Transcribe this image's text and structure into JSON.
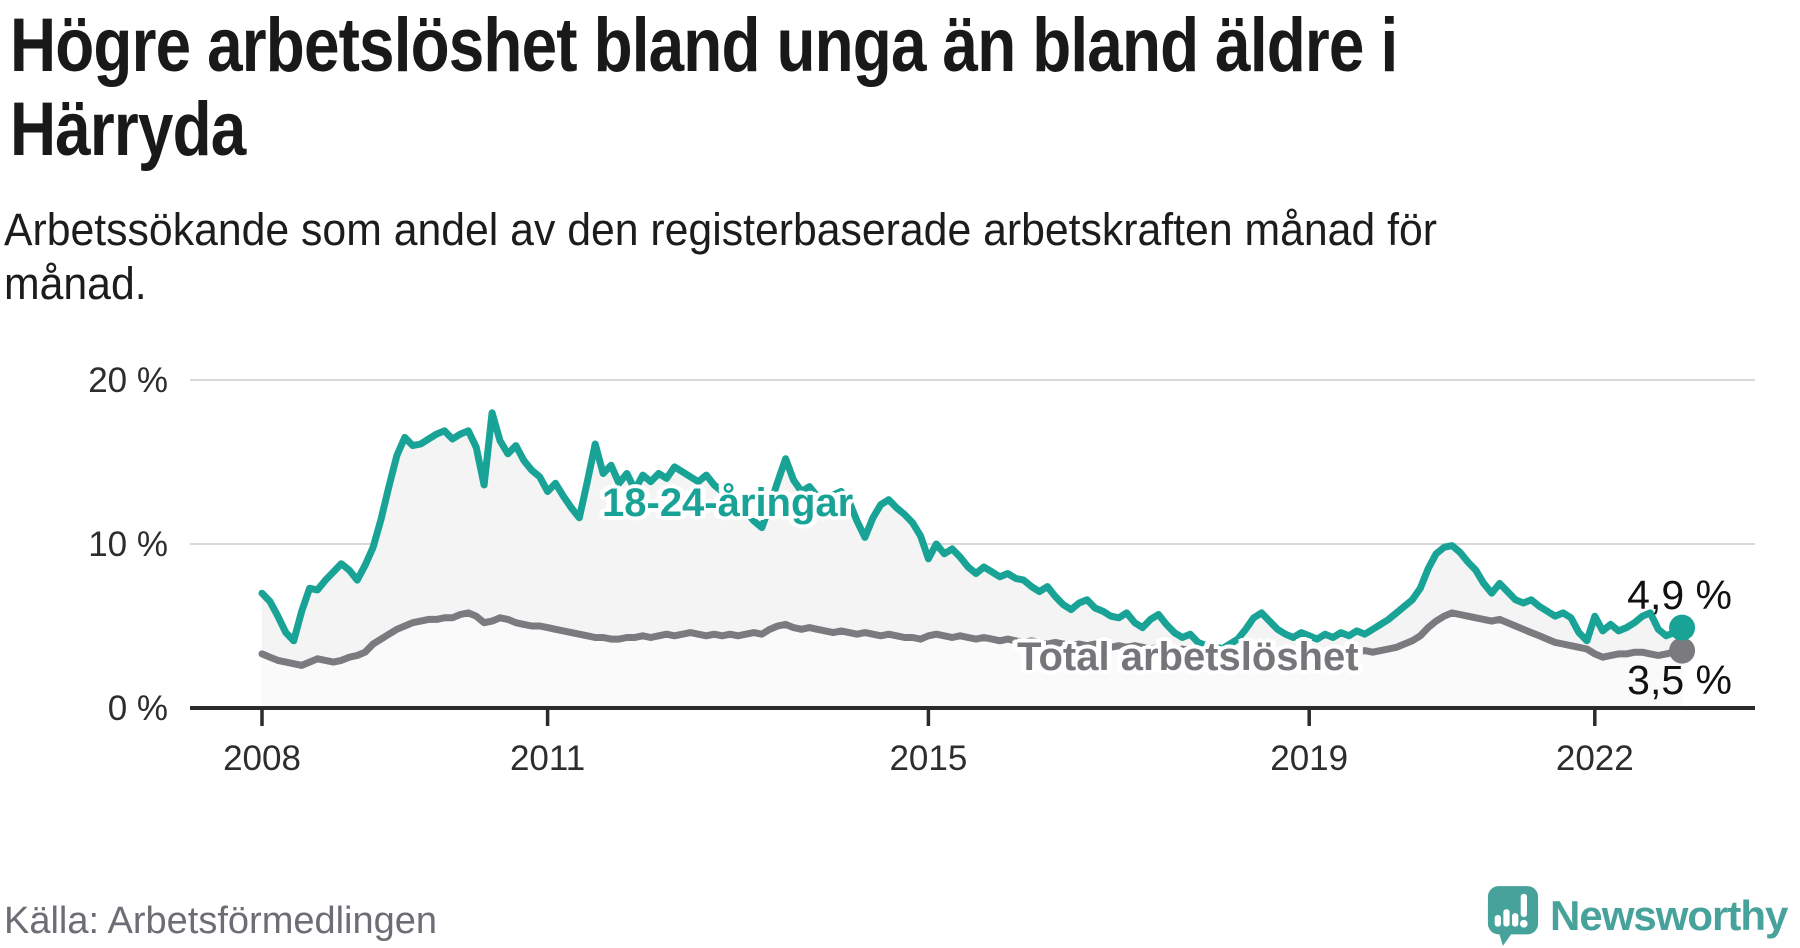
{
  "title": {
    "lines": [
      "Högre arbetslöshet bland unga än bland äldre i",
      "Härryda"
    ]
  },
  "subtitle": {
    "lines": [
      "Arbetssökande som andel av den registerbaserade arbetskraften månad för",
      "månad."
    ]
  },
  "annotations": {
    "youth_label": "18-24-åringar",
    "total_label": "Total arbetslöshet",
    "youth_end_label": "4,9 %",
    "total_end_label": "3,5 %"
  },
  "source": "Källa: Arbetsförmedlingen",
  "brand": {
    "name": "Newsworthy",
    "color": "#47a29b"
  },
  "chart_data": {
    "type": "line",
    "x": {
      "start_year": 2008,
      "interval": "monthly",
      "end_year": 2022,
      "end_month": 12
    },
    "x_ticks": [
      2008,
      2011,
      2015,
      2019,
      2022
    ],
    "y_ticks": [
      {
        "value": 0,
        "label": "0 %"
      },
      {
        "value": 10,
        "label": "10 %"
      },
      {
        "value": 20,
        "label": "20 %"
      }
    ],
    "ylim": [
      0,
      21
    ],
    "grid": true,
    "legend_position": "inline-labels",
    "colors": {
      "youth": "#18a396",
      "total": "#7a7a7f",
      "area_youth": "#f4f4f4",
      "area_total": "#fafafa",
      "grid": "#d9d9d9",
      "axis": "#2b2b2b",
      "tick_text": "#2d2d2d"
    },
    "series": [
      {
        "name": "18-24-åringar",
        "color": "#18a396",
        "end_label": "4,9 %",
        "end_value": 4.9,
        "values": [
          7.0,
          6.5,
          5.6,
          4.6,
          4.1,
          5.9,
          7.3,
          7.2,
          7.8,
          8.3,
          8.8,
          8.4,
          7.8,
          8.7,
          9.8,
          11.5,
          13.5,
          15.4,
          16.5,
          16.0,
          16.1,
          16.4,
          16.7,
          16.9,
          16.4,
          16.7,
          16.9,
          15.9,
          13.6,
          18.0,
          16.3,
          15.5,
          16.0,
          15.1,
          14.5,
          14.1,
          13.2,
          13.7,
          12.9,
          12.2,
          11.6,
          13.8,
          16.1,
          14.3,
          14.8,
          13.7,
          14.3,
          13.3,
          14.2,
          13.8,
          14.3,
          14.0,
          14.7,
          14.4,
          14.1,
          13.8,
          14.2,
          13.6,
          13.2,
          12.8,
          12.6,
          12.0,
          11.4,
          11.0,
          12.3,
          13.8,
          15.2,
          13.9,
          13.2,
          13.5,
          12.9,
          12.7,
          13.0,
          13.2,
          12.6,
          11.4,
          10.4,
          11.6,
          12.4,
          12.7,
          12.2,
          11.8,
          11.3,
          10.5,
          9.1,
          10.0,
          9.4,
          9.7,
          9.2,
          8.6,
          8.2,
          8.6,
          8.3,
          8.0,
          8.2,
          7.9,
          7.8,
          7.4,
          7.1,
          7.4,
          6.8,
          6.3,
          6.0,
          6.4,
          6.6,
          6.1,
          5.9,
          5.6,
          5.5,
          5.8,
          5.2,
          4.9,
          5.4,
          5.7,
          5.1,
          4.6,
          4.3,
          4.5,
          4.0,
          3.8,
          3.8,
          3.6,
          3.9,
          4.2,
          4.8,
          5.5,
          5.8,
          5.3,
          4.8,
          4.5,
          4.3,
          4.6,
          4.4,
          4.2,
          4.5,
          4.3,
          4.6,
          4.4,
          4.7,
          4.5,
          4.8,
          5.1,
          5.4,
          5.8,
          6.2,
          6.6,
          7.3,
          8.5,
          9.4,
          9.8,
          9.9,
          9.5,
          8.9,
          8.4,
          7.6,
          7.0,
          7.6,
          7.1,
          6.6,
          6.4,
          6.6,
          6.2,
          5.9,
          5.6,
          5.8,
          5.5,
          4.6,
          4.1,
          5.6,
          4.7,
          5.1,
          4.7,
          4.9,
          5.2,
          5.6,
          5.8,
          4.8,
          4.4,
          4.6,
          4.9
        ]
      },
      {
        "name": "Total arbetslöshet",
        "color": "#7a7a7f",
        "end_label": "3,5 %",
        "end_value": 3.5,
        "values": [
          3.3,
          3.1,
          2.9,
          2.8,
          2.7,
          2.6,
          2.8,
          3.0,
          2.9,
          2.8,
          2.9,
          3.1,
          3.2,
          3.4,
          3.9,
          4.2,
          4.5,
          4.8,
          5.0,
          5.2,
          5.3,
          5.4,
          5.4,
          5.5,
          5.5,
          5.7,
          5.8,
          5.6,
          5.2,
          5.3,
          5.5,
          5.4,
          5.2,
          5.1,
          5.0,
          5.0,
          4.9,
          4.8,
          4.7,
          4.6,
          4.5,
          4.4,
          4.3,
          4.3,
          4.2,
          4.2,
          4.3,
          4.3,
          4.4,
          4.3,
          4.4,
          4.5,
          4.4,
          4.5,
          4.6,
          4.5,
          4.4,
          4.5,
          4.4,
          4.5,
          4.4,
          4.5,
          4.6,
          4.5,
          4.8,
          5.0,
          5.1,
          4.9,
          4.8,
          4.9,
          4.8,
          4.7,
          4.6,
          4.7,
          4.6,
          4.5,
          4.6,
          4.5,
          4.4,
          4.5,
          4.4,
          4.3,
          4.3,
          4.2,
          4.4,
          4.5,
          4.4,
          4.3,
          4.4,
          4.3,
          4.2,
          4.3,
          4.2,
          4.1,
          4.2,
          4.1,
          4.0,
          4.1,
          4.0,
          3.9,
          4.0,
          3.9,
          3.8,
          3.9,
          3.8,
          3.9,
          3.8,
          3.7,
          3.8,
          3.7,
          3.8,
          3.7,
          3.6,
          3.7,
          3.6,
          3.5,
          3.6,
          3.5,
          3.4,
          3.5,
          3.4,
          3.5,
          3.4,
          3.3,
          3.4,
          3.3,
          3.2,
          3.3,
          3.2,
          3.3,
          3.2,
          3.3,
          3.2,
          3.3,
          3.2,
          3.3,
          3.4,
          3.3,
          3.4,
          3.5,
          3.4,
          3.5,
          3.6,
          3.7,
          3.9,
          4.1,
          4.4,
          4.9,
          5.3,
          5.6,
          5.8,
          5.7,
          5.6,
          5.5,
          5.4,
          5.3,
          5.4,
          5.2,
          5.0,
          4.8,
          4.6,
          4.4,
          4.2,
          4.0,
          3.9,
          3.8,
          3.7,
          3.6,
          3.3,
          3.1,
          3.2,
          3.3,
          3.3,
          3.4,
          3.4,
          3.3,
          3.2,
          3.3,
          3.4,
          3.5
        ]
      }
    ]
  }
}
